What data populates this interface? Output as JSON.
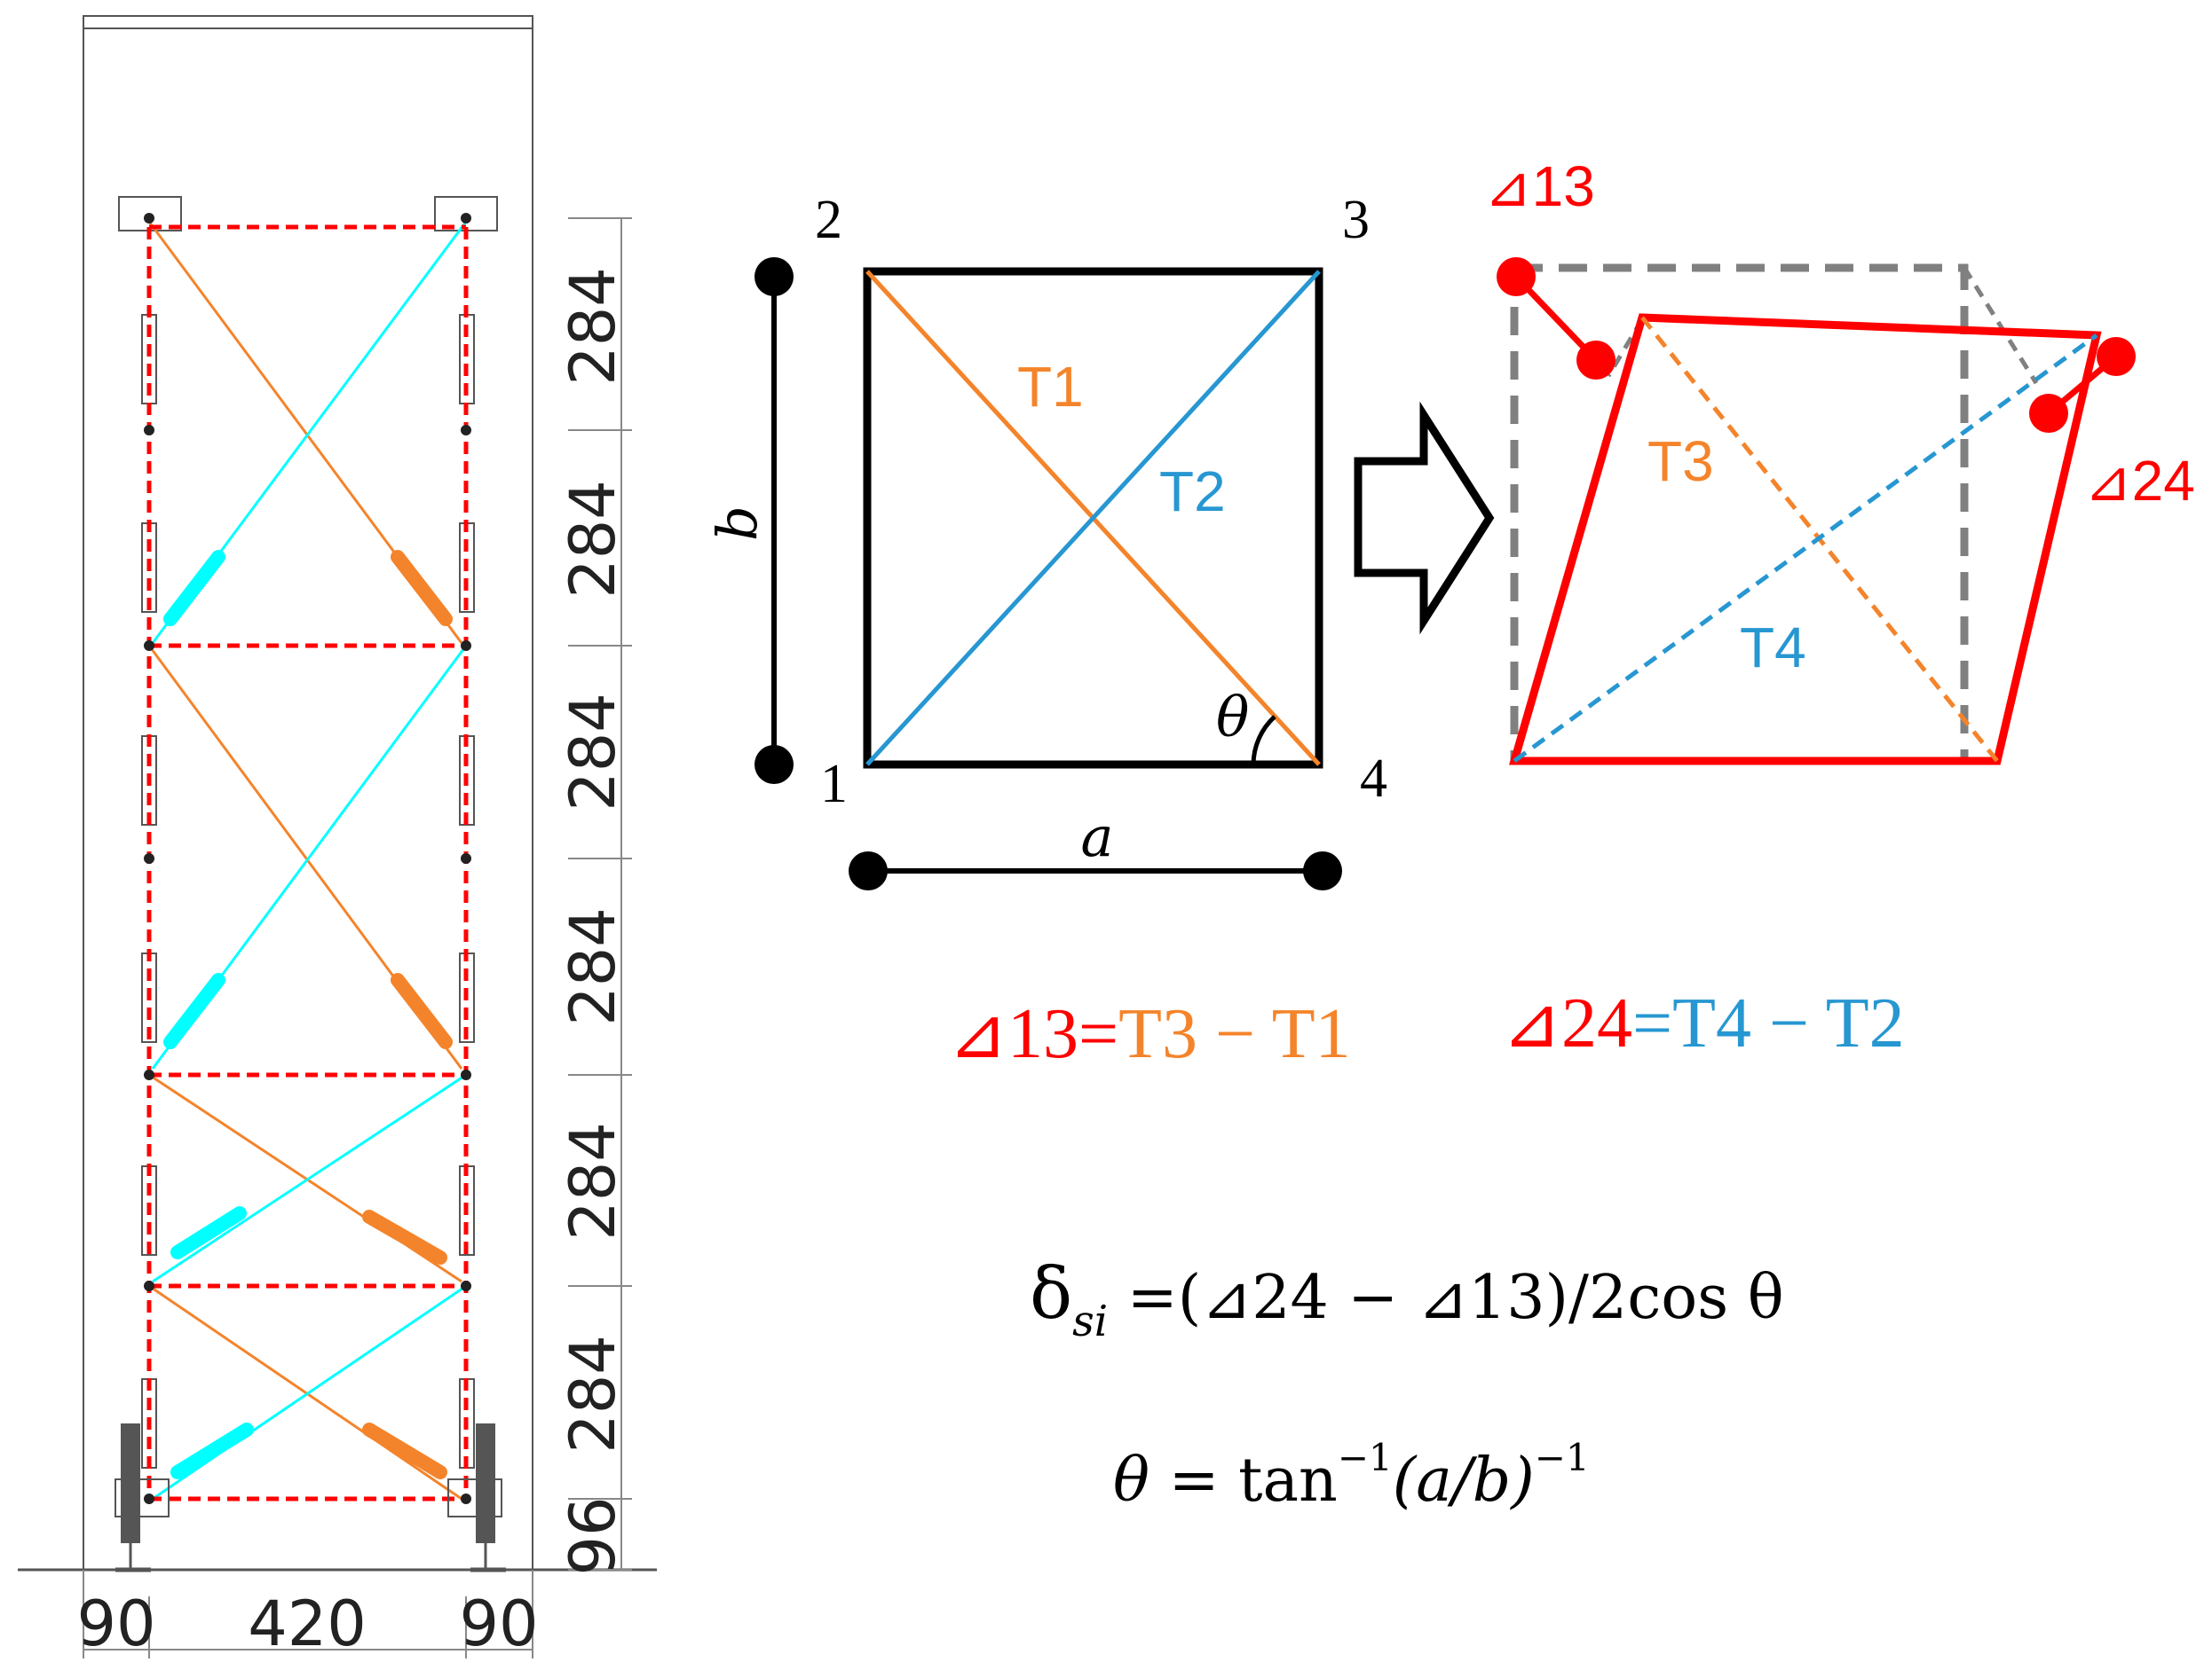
{
  "colors": {
    "red": "#ff0000",
    "orange": "#f4842b",
    "blue": "#2797d2",
    "cyan": "#00ffff",
    "gray": "#808080",
    "black": "#000000"
  },
  "frame": {
    "story_heights": [
      "284",
      "284",
      "284",
      "284",
      "284",
      "284"
    ],
    "bottom_height": "96",
    "widths": [
      "90",
      "420",
      "90"
    ]
  },
  "panel": {
    "corners": [
      "1",
      "2",
      "3",
      "4"
    ],
    "tapes": [
      "T1",
      "T2"
    ],
    "dim_a": "a",
    "dim_b": "b",
    "angle": "θ"
  },
  "deformed": {
    "tapes": [
      "T3",
      "T4"
    ],
    "delta_13": "⊿13",
    "delta_24": "⊿24"
  },
  "equations": {
    "eq1": {
      "lhs": "⊿13",
      "eq": "=",
      "t_a": "T3",
      "minus": " − ",
      "t_b": "T1"
    },
    "eq2": {
      "lhs": "⊿24",
      "eq": "=",
      "t_a": "T4",
      "minus": " − ",
      "t_b": "T2"
    }
  },
  "formulas": {
    "f1_main": "δ",
    "f1_sub": "si",
    "f1_rest": " =(⊿24 − ⊿13)/2cos θ",
    "f2_theta": "θ",
    "f2_eq": " = tan",
    "f2_sup1": "−1",
    "f2_paren": "(a/b)",
    "f2_sup2": "−1"
  }
}
